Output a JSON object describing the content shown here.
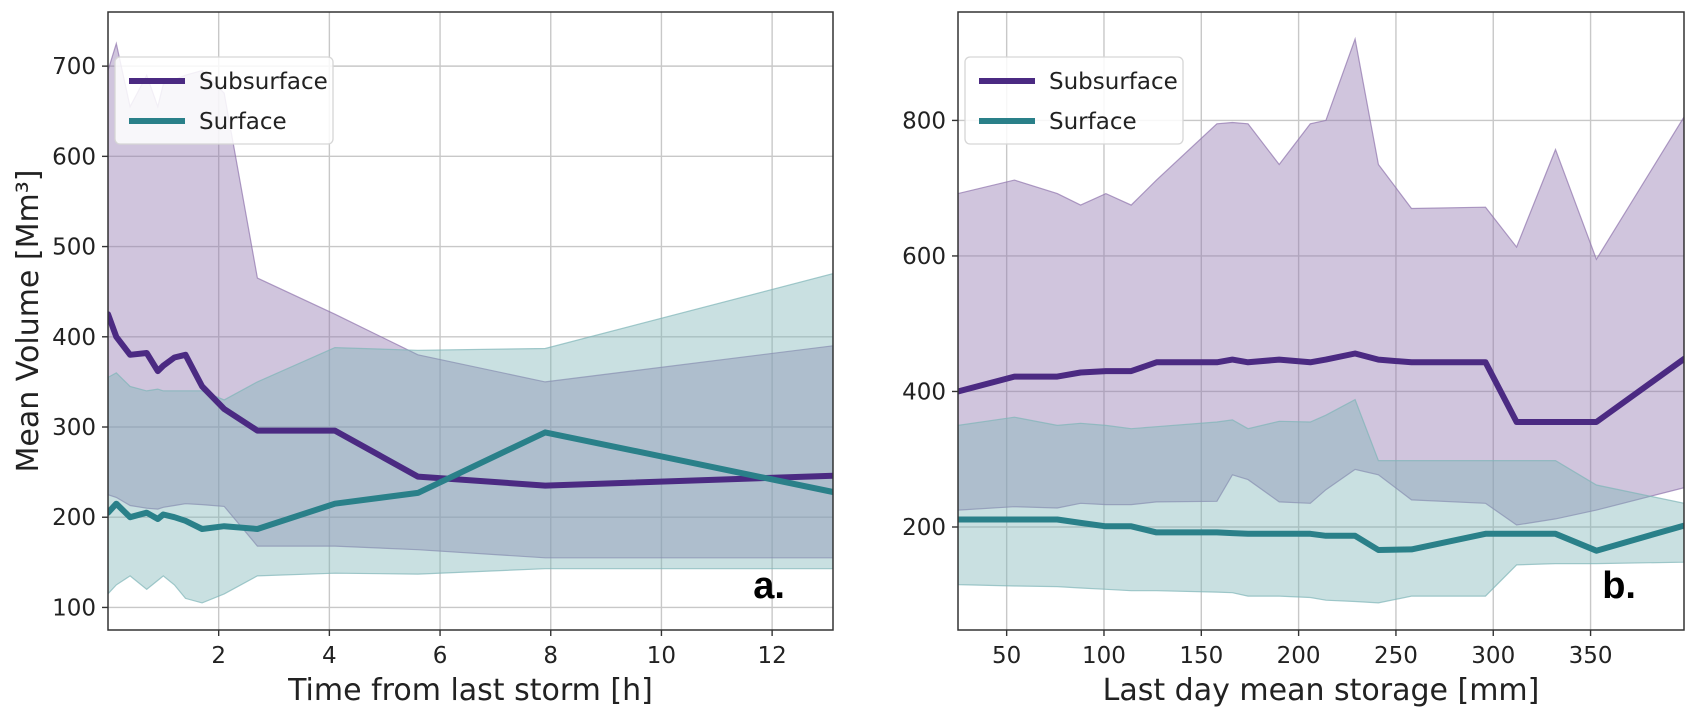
{
  "chart_data": [
    {
      "type": "line",
      "panel_label": "a.",
      "xlabel": "Time from last storm [h]",
      "ylabel": "Mean Volume [Mm³]",
      "xlim": [
        0,
        13.1
      ],
      "ylim": [
        75,
        760
      ],
      "xticks": [
        2,
        4,
        6,
        8,
        10,
        12
      ],
      "yticks": [
        100,
        200,
        300,
        400,
        500,
        600,
        700
      ],
      "grid": true,
      "legend": "top-left",
      "series": [
        {
          "name": "Subsurface",
          "color": "#4b2a82",
          "band_color": "#8e74ad",
          "x": [
            0.0,
            0.15,
            0.4,
            0.7,
            0.9,
            1.0,
            1.2,
            1.4,
            1.7,
            2.1,
            2.7,
            4.1,
            5.6,
            7.9,
            13.1
          ],
          "y": [
            425,
            400,
            380,
            382,
            362,
            368,
            377,
            380,
            345,
            320,
            296,
            296,
            245,
            235,
            246
          ],
          "low": [
            225,
            222,
            213,
            210,
            209,
            211,
            213,
            215,
            214,
            212,
            168,
            168,
            164,
            155,
            155
          ],
          "high": [
            695,
            725,
            655,
            690,
            655,
            680,
            685,
            690,
            695,
            670,
            465,
            425,
            380,
            350,
            390
          ]
        },
        {
          "name": "Surface",
          "color": "#2a8089",
          "band_color": "#7fb5b8",
          "x": [
            0.0,
            0.15,
            0.4,
            0.7,
            0.9,
            1.0,
            1.2,
            1.4,
            1.7,
            2.1,
            2.7,
            4.1,
            5.6,
            7.9,
            13.1
          ],
          "y": [
            205,
            215,
            200,
            205,
            198,
            203,
            200,
            196,
            187,
            190,
            187,
            215,
            227,
            294,
            228
          ],
          "low": [
            115,
            125,
            135,
            120,
            130,
            135,
            125,
            110,
            105,
            115,
            135,
            138,
            137,
            143,
            143
          ],
          "high": [
            355,
            360,
            345,
            340,
            342,
            340,
            340,
            340,
            340,
            330,
            350,
            388,
            385,
            387,
            470
          ]
        }
      ]
    },
    {
      "type": "line",
      "panel_label": "b.",
      "xlabel": "Last day mean storage [mm]",
      "ylabel": "",
      "xlim": [
        25,
        398
      ],
      "ylim": [
        48,
        960
      ],
      "xticks": [
        50,
        100,
        150,
        200,
        250,
        300,
        350
      ],
      "yticks": [
        200,
        400,
        600,
        800
      ],
      "grid": true,
      "legend": "top-left",
      "series": [
        {
          "name": "Subsurface",
          "color": "#4b2a82",
          "band_color": "#8e74ad",
          "x": [
            25,
            54,
            76,
            88,
            101,
            114,
            127,
            158,
            166,
            174,
            190,
            206,
            214,
            229,
            241,
            258,
            296,
            312,
            332,
            353,
            398
          ],
          "y": [
            400,
            422,
            422,
            428,
            430,
            430,
            443,
            443,
            447,
            443,
            447,
            443,
            447,
            456,
            447,
            443,
            443,
            355,
            355,
            355,
            448
          ],
          "low": [
            225,
            230,
            228,
            235,
            233,
            233,
            237,
            238,
            277,
            270,
            237,
            235,
            255,
            285,
            277,
            240,
            235,
            203,
            212,
            225,
            258
          ],
          "high": [
            692,
            712,
            692,
            675,
            692,
            675,
            712,
            795,
            797,
            795,
            735,
            795,
            800,
            920,
            735,
            670,
            672,
            613,
            757,
            595,
            805
          ]
        },
        {
          "name": "Surface",
          "color": "#2a8089",
          "band_color": "#7fb5b8",
          "x": [
            25,
            54,
            76,
            88,
            101,
            114,
            127,
            158,
            166,
            174,
            190,
            206,
            214,
            229,
            241,
            258,
            296,
            312,
            332,
            353,
            398
          ],
          "y": [
            211,
            211,
            211,
            206,
            201,
            201,
            192,
            192,
            191,
            190,
            190,
            190,
            187,
            187,
            166,
            167,
            190,
            190,
            190,
            165,
            202
          ],
          "low": [
            115,
            113,
            112,
            110,
            108,
            106,
            106,
            104,
            103,
            98,
            98,
            96,
            92,
            90,
            88,
            98,
            98,
            144,
            146,
            146,
            148
          ],
          "high": [
            350,
            362,
            350,
            353,
            350,
            345,
            348,
            355,
            358,
            345,
            356,
            355,
            365,
            388,
            298,
            298,
            298,
            298,
            298,
            262,
            235
          ]
        }
      ]
    }
  ]
}
